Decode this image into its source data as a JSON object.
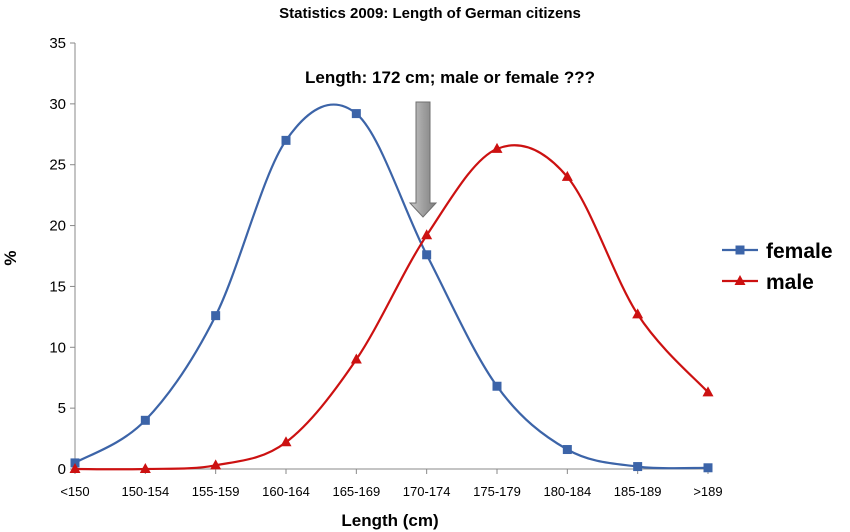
{
  "chart_data": {
    "type": "line",
    "title": "Statistics 2009: Length of German citizens",
    "xlabel": "Length (cm)",
    "ylabel": "%",
    "categories": [
      "<150",
      "150-154",
      "155-159",
      "160-164",
      "165-169",
      "170-174",
      "175-179",
      "180-184",
      "185-189",
      ">189"
    ],
    "ylim": [
      0,
      35
    ],
    "yticks": [
      0,
      5,
      10,
      15,
      20,
      25,
      30,
      35
    ],
    "grid": false,
    "legend": "right",
    "smooth": true,
    "series": [
      {
        "name": "female",
        "color": "#3c64a8",
        "marker": "square",
        "values": [
          0.5,
          4.0,
          12.6,
          27.0,
          29.2,
          17.6,
          6.8,
          1.6,
          0.2,
          0.1
        ]
      },
      {
        "name": "male",
        "color": "#cc1111",
        "marker": "triangle",
        "values": [
          0.0,
          0.0,
          0.3,
          2.2,
          9.0,
          19.2,
          26.3,
          24.0,
          12.7,
          6.3
        ]
      }
    ],
    "annotation": {
      "text": "Length: 172 cm; male or female ???",
      "arrow_color": "#9a9a9a",
      "target_category": "170-174"
    }
  }
}
